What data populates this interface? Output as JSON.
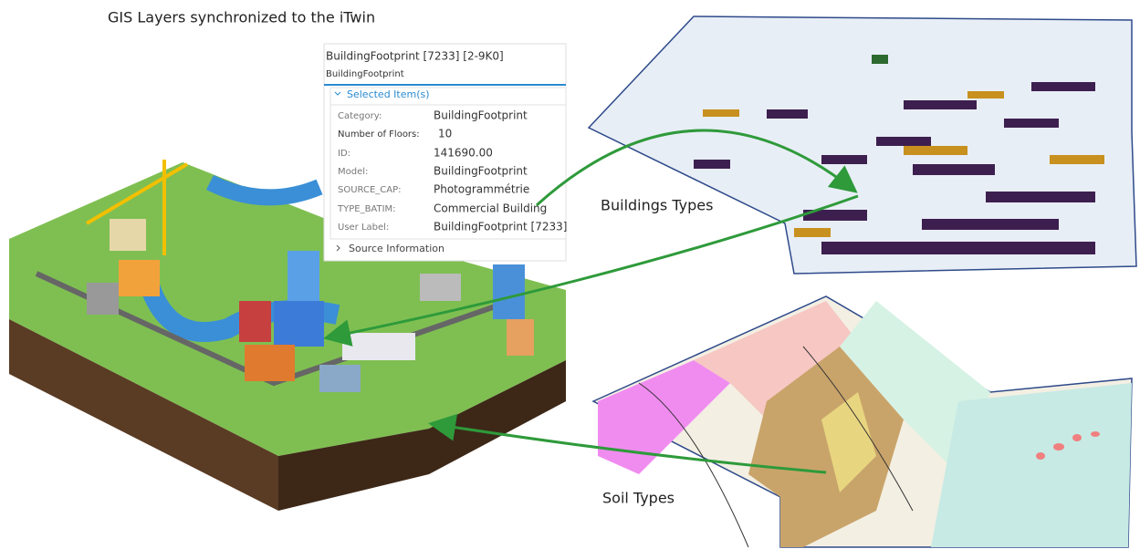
{
  "title": "GIS Layers synchronized to the iTwin",
  "panel": {
    "title": "BuildingFootprint [7233] [2-9K0]",
    "subtitle": "BuildingFootprint",
    "section": "Selected Item(s)",
    "properties": [
      {
        "label": "Category:",
        "value": "BuildingFootprint"
      },
      {
        "label": "Number of Floors:",
        "value": "10"
      },
      {
        "label": "ID:",
        "value": "141690.00"
      },
      {
        "label": "Model:",
        "value": "BuildingFootprint"
      },
      {
        "label": "SOURCE_CAP:",
        "value": "Photogrammétrie"
      },
      {
        "label": "TYPE_BATIM:",
        "value": "Commercial Building"
      },
      {
        "label": "User Label:",
        "value": "BuildingFootprint [7233]"
      }
    ],
    "footer": "Source Information"
  },
  "labels": {
    "buildings": "Buildings Types",
    "soil": "Soil Types"
  }
}
